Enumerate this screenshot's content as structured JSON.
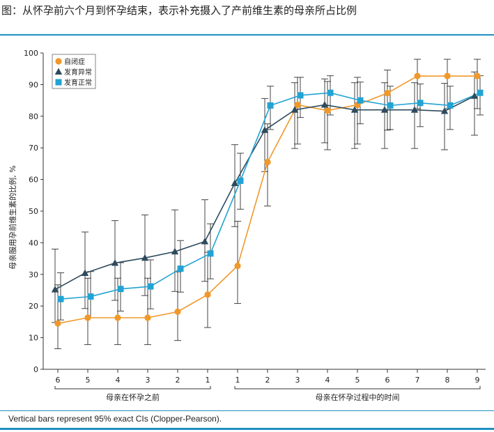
{
  "figure": {
    "title": "图：从怀孕前六个月到怀孕结束，表示补充摄入了产前维生素的母亲所占比例",
    "footnote": "Vertical bars represent 95% exact CIs (Clopper-Pearson).",
    "colors": {
      "rule": "#1f8fc0"
    }
  },
  "chart_data": {
    "type": "line",
    "ylabel": "母亲服用孕前维生素的比例, %",
    "ylim": [
      0,
      100
    ],
    "yticks": [
      0,
      10,
      20,
      30,
      40,
      50,
      60,
      70,
      80,
      90,
      100
    ],
    "categories": [
      "6",
      "5",
      "4",
      "3",
      "2",
      "1",
      "1",
      "2",
      "3",
      "4",
      "5",
      "6",
      "7",
      "8",
      "9"
    ],
    "groups": [
      {
        "label": "母亲在怀孕之前",
        "start": 0,
        "end": 5
      },
      {
        "label": "母亲在怀孕过程中的时间",
        "start": 6,
        "end": 14
      }
    ],
    "legend_position": "top-left",
    "grid": false,
    "series": [
      {
        "name": "自闭症",
        "color": "#f0982a",
        "marker": "circle",
        "values": [
          14.5,
          16.3,
          16.3,
          16.3,
          18.2,
          23.6,
          32.7,
          65.5,
          83.6,
          81.8,
          83.6,
          87.3,
          92.7,
          92.7,
          92.7
        ],
        "ci_low": [
          6.5,
          7.8,
          7.8,
          7.8,
          9.1,
          13.2,
          20.8,
          51.6,
          71.2,
          69.4,
          71.2,
          75.6,
          82.4,
          82.4,
          82.4
        ],
        "ci_high": [
          26.7,
          28.8,
          28.8,
          28.8,
          30.8,
          37.0,
          46.8,
          77.6,
          92.3,
          91.0,
          92.3,
          94.6,
          98.0,
          98.0,
          98.0
        ]
      },
      {
        "name": "发育异常",
        "color": "#2e4a5c",
        "marker": "triangle",
        "values": [
          25.2,
          30.4,
          33.6,
          35.2,
          37.2,
          40.4,
          58.8,
          75.6,
          82.0,
          83.6,
          82.0,
          82.0,
          82.0,
          81.6,
          86.4
        ],
        "ci_low": [
          14.8,
          19.2,
          21.8,
          23.3,
          24.6,
          27.8,
          45.1,
          62.5,
          69.8,
          71.6,
          69.8,
          69.8,
          69.8,
          69.4,
          74.0
        ],
        "ci_high": [
          38.0,
          43.4,
          47.0,
          48.8,
          50.4,
          53.6,
          71.0,
          85.6,
          90.6,
          91.8,
          90.6,
          90.6,
          90.6,
          90.4,
          94.0
        ]
      },
      {
        "name": "发育正常",
        "color": "#21a3d3",
        "marker": "square",
        "values": [
          22.2,
          23.0,
          25.4,
          26.2,
          31.8,
          36.6,
          59.6,
          83.4,
          86.6,
          87.4,
          85.0,
          83.4,
          84.2,
          83.4,
          87.4
        ],
        "ci_low": [
          15.6,
          16.3,
          18.4,
          19.1,
          24.4,
          28.6,
          50.6,
          75.8,
          79.6,
          80.4,
          77.6,
          75.8,
          76.7,
          75.8,
          80.4
        ],
        "ci_high": [
          30.5,
          30.9,
          33.7,
          34.6,
          40.7,
          46.0,
          68.3,
          89.5,
          92.3,
          92.8,
          90.8,
          89.5,
          90.2,
          89.5,
          92.8
        ]
      }
    ]
  }
}
